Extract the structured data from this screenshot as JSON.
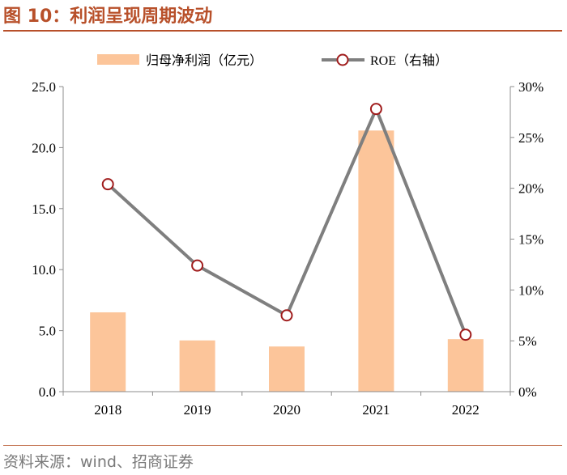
{
  "figure": {
    "title": "图 10：利润呈现周期波动",
    "source": "资料来源：wind、招商证券"
  },
  "colors": {
    "accent": "#b8502a",
    "bar": "#fcc59a",
    "line": "#7f7f7f",
    "marker_edge": "#a01c1c"
  },
  "chart_data": {
    "type": "bar",
    "categories": [
      "2018",
      "2019",
      "2020",
      "2021",
      "2022"
    ],
    "series": [
      {
        "name": "归母净利润（亿元）",
        "kind": "bar",
        "axis": "left",
        "values": [
          6.5,
          4.2,
          3.7,
          21.4,
          4.3
        ]
      },
      {
        "name": "ROE（右轴）",
        "kind": "line",
        "axis": "right",
        "values": [
          20.4,
          12.4,
          7.5,
          27.8,
          5.6
        ]
      }
    ],
    "legend": {
      "bar_label": "归母净利润（亿元）",
      "line_label_main": "ROE",
      "line_label_suffix": "（右轴）",
      "placement": "top"
    },
    "y_left": {
      "ylim": [
        0,
        25
      ],
      "ticks": [
        "0.0",
        "5.0",
        "10.0",
        "15.0",
        "20.0",
        "25.0"
      ]
    },
    "y_right": {
      "ylim": [
        0,
        30
      ],
      "ticks": [
        "0%",
        "5%",
        "10%",
        "15%",
        "20%",
        "25%",
        "30%"
      ]
    },
    "grid": false
  }
}
